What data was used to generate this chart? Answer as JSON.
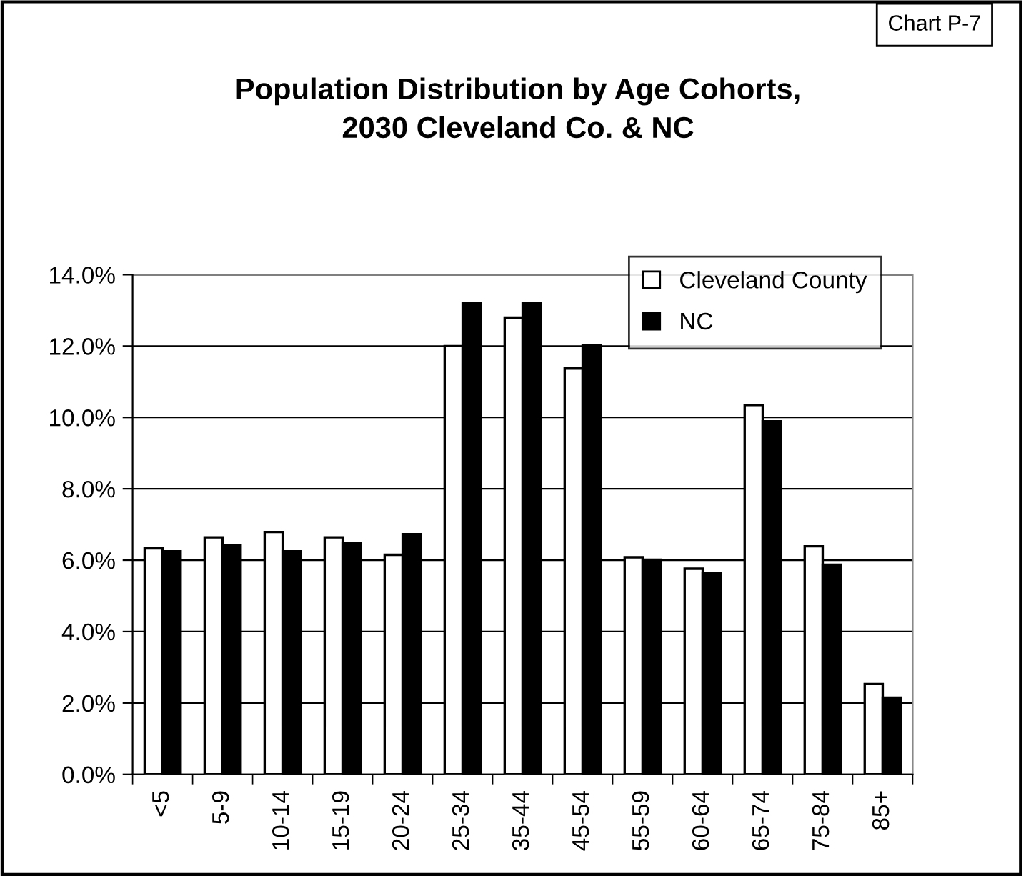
{
  "chart_data": {
    "type": "bar",
    "title": "Population Distribution by Age Cohorts,\n2030 Cleveland Co. & NC",
    "annotations": [
      "Chart P-7"
    ],
    "categories": [
      "<5",
      "5-9",
      "10-14",
      "15-19",
      "20-24",
      "25-34",
      "35-44",
      "45-54",
      "55-59",
      "60-64",
      "65-74",
      "75-84",
      "85+"
    ],
    "series": [
      {
        "name": "Cleveland County",
        "color": "#ffffff",
        "values": [
          6.33,
          6.64,
          6.79,
          6.64,
          6.15,
          12.0,
          12.8,
          11.37,
          6.08,
          5.76,
          10.35,
          6.39,
          2.53
        ]
      },
      {
        "name": "NC",
        "color": "#000000",
        "values": [
          6.25,
          6.41,
          6.25,
          6.49,
          6.73,
          13.2,
          13.2,
          12.03,
          6.01,
          5.63,
          9.89,
          5.87,
          2.15
        ]
      }
    ],
    "ylim": [
      0,
      14
    ],
    "yticks": [
      {
        "value": 0,
        "label": "0.0%"
      },
      {
        "value": 2,
        "label": "2.0%"
      },
      {
        "value": 4,
        "label": "4.0%"
      },
      {
        "value": 6,
        "label": "6.0%"
      },
      {
        "value": 8,
        "label": "8.0%"
      },
      {
        "value": 10,
        "label": "10.0%"
      },
      {
        "value": 12,
        "label": "12.0%"
      },
      {
        "value": 14,
        "label": "14.0%"
      }
    ],
    "grid": "y",
    "legend": "top right"
  }
}
